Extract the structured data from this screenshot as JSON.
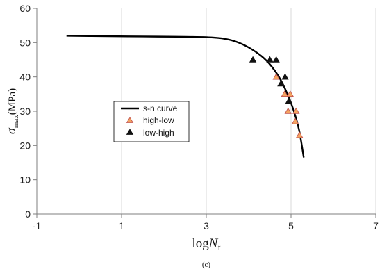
{
  "chart_data": {
    "type": "scatter",
    "xlim": [
      -1,
      7
    ],
    "ylim": [
      0,
      60
    ],
    "xticks": [
      -1,
      1,
      3,
      5,
      7
    ],
    "yticks": [
      0,
      10,
      20,
      30,
      40,
      50,
      60
    ],
    "grid": {
      "vertical": true,
      "horizontal": false
    },
    "xlabel": {
      "prefix": "log",
      "var": "N",
      "sub": "f"
    },
    "ylabel": {
      "var": "σ",
      "sub": "max",
      "unit": "(MPa)"
    },
    "legend_position": "center-left",
    "caption": "(c)",
    "series": [
      {
        "name": "s-n curve",
        "kind": "line",
        "color": "#000000",
        "points": [
          [
            -0.3,
            52.0
          ],
          [
            0.5,
            51.9
          ],
          [
            1.5,
            51.8
          ],
          [
            2.5,
            51.7
          ],
          [
            3.0,
            51.6
          ],
          [
            3.4,
            51.2
          ],
          [
            3.7,
            50.3
          ],
          [
            4.0,
            48.6
          ],
          [
            4.3,
            46.1
          ],
          [
            4.5,
            43.7
          ],
          [
            4.7,
            40.3
          ],
          [
            4.85,
            36.8
          ],
          [
            5.0,
            32.4
          ],
          [
            5.1,
            28.7
          ],
          [
            5.2,
            23.9
          ],
          [
            5.3,
            16.5
          ]
        ]
      },
      {
        "name": "high-low",
        "kind": "marker",
        "marker": "triangle",
        "color": "#f4a460",
        "stroke": "#c0504d",
        "points": [
          [
            4.65,
            40.0
          ],
          [
            4.85,
            35.0
          ],
          [
            4.98,
            35.0
          ],
          [
            4.93,
            30.0
          ],
          [
            5.12,
            30.0
          ],
          [
            5.1,
            27.0
          ],
          [
            5.2,
            23.0
          ]
        ]
      },
      {
        "name": "low-high",
        "kind": "marker",
        "marker": "triangle",
        "color": "#111111",
        "stroke": "#111111",
        "points": [
          [
            4.1,
            45.0
          ],
          [
            4.5,
            45.0
          ],
          [
            4.65,
            45.0
          ],
          [
            4.86,
            40.0
          ],
          [
            4.76,
            38.0
          ],
          [
            4.95,
            33.0
          ]
        ]
      }
    ]
  }
}
